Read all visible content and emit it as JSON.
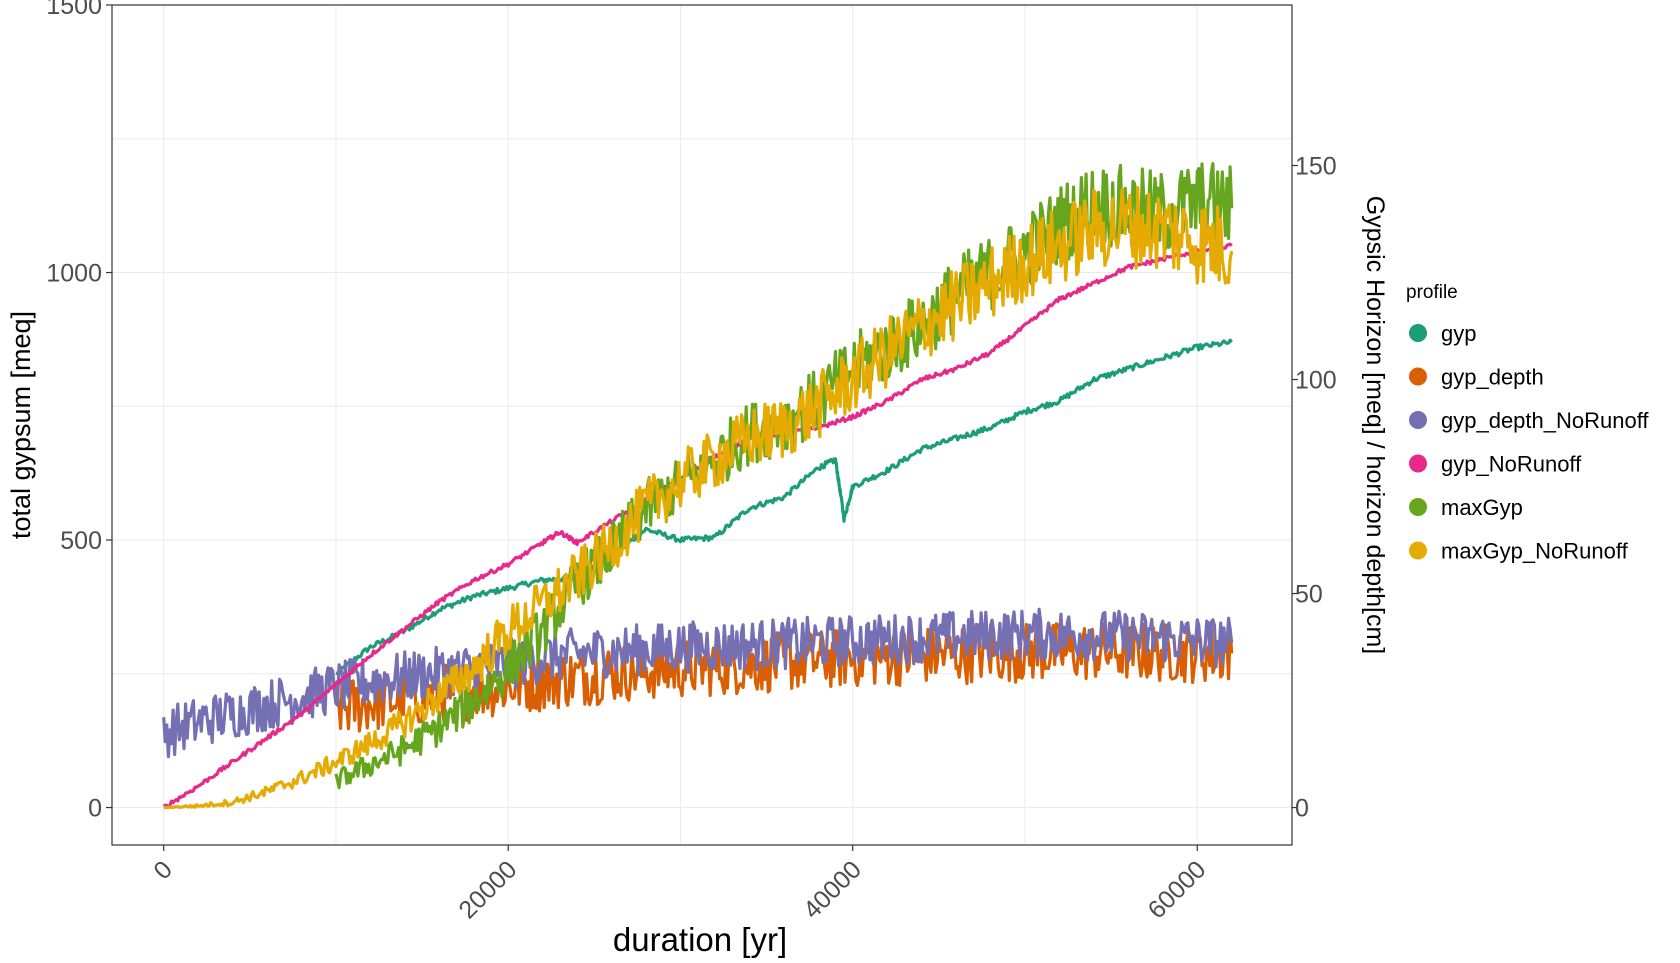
{
  "chart_data": {
    "type": "line",
    "title": "",
    "xlabel": "duration [yr]",
    "ylabel": "total gypsum [meq]",
    "y2label": "Gypsic Horizon [meq] / horizon depth[cm]",
    "xlim": [
      -3000,
      65500
    ],
    "ylim": [
      -70,
      1500
    ],
    "y2lim": [
      -8.75,
      187.5
    ],
    "y2_scale_factor": 8,
    "xticks": [
      0,
      20000,
      40000,
      60000
    ],
    "xtick_labels": [
      "0",
      "20000",
      "40000",
      "60000"
    ],
    "yticks": [
      0,
      500,
      1000,
      1500
    ],
    "ytick_labels": [
      "0",
      "500",
      "1000",
      "1500"
    ],
    "y2ticks": [
      0,
      50,
      100,
      150
    ],
    "y2tick_labels": [
      "0",
      "50",
      "100",
      "150"
    ],
    "grid": true,
    "legend_position": "right",
    "legend_title": "profile",
    "series": [
      {
        "name": "gyp",
        "axis": "left",
        "color": "#1b9e77",
        "x": [
          10000,
          12000,
          14000,
          16000,
          18000,
          20000,
          22000,
          24000,
          26000,
          28000,
          30000,
          32000,
          34000,
          36000,
          38000,
          39000,
          39500,
          40000,
          42000,
          44000,
          46000,
          48000,
          50000,
          52000,
          54000,
          56000,
          58000,
          60000,
          62000
        ],
        "values": [
          250,
          300,
          330,
          370,
          395,
          410,
          425,
          430,
          470,
          520,
          500,
          505,
          560,
          580,
          635,
          650,
          540,
          600,
          630,
          670,
          690,
          710,
          740,
          760,
          800,
          820,
          840,
          860,
          870
        ]
      },
      {
        "name": "gyp_depth",
        "axis": "right",
        "color": "#d95f02",
        "x": [
          10000,
          12000,
          14000,
          16000,
          18000,
          20000,
          22000,
          24000,
          26000,
          28000,
          30000,
          32000,
          34000,
          36000,
          38000,
          40000,
          42000,
          44000,
          46000,
          48000,
          50000,
          52000,
          54000,
          56000,
          58000,
          60000,
          62000
        ],
        "values": [
          23,
          24.5,
          25.5,
          26.5,
          27.5,
          28.5,
          29.5,
          30.5,
          31.5,
          32,
          32.5,
          33,
          33.5,
          34,
          34.5,
          35,
          35.3,
          35.6,
          35.9,
          36.1,
          36.3,
          36.4,
          36.5,
          36.4,
          36.3,
          36.1,
          36
        ]
      },
      {
        "name": "gyp_depth_NoRunoff",
        "axis": "right",
        "color": "#7570b3",
        "x": [
          0,
          2000,
          4000,
          6000,
          8000,
          10000,
          12000,
          14000,
          16000,
          18000,
          20000,
          22000,
          24000,
          26000,
          28000,
          30000,
          32000,
          34000,
          36000,
          38000,
          40000,
          42000,
          44000,
          46000,
          48000,
          50000,
          52000,
          54000,
          56000,
          58000,
          60000,
          62000
        ],
        "values": [
          17.5,
          20,
          22,
          24,
          26,
          28,
          29.5,
          30.5,
          31.5,
          32.5,
          33.5,
          35,
          36,
          36.5,
          37,
          37.5,
          37.8,
          38,
          38.3,
          38.6,
          39,
          39.3,
          39.6,
          40,
          40.3,
          40.5,
          40.5,
          40.3,
          40,
          39.6,
          39,
          38.5
        ]
      },
      {
        "name": "gyp_NoRunoff",
        "axis": "left",
        "color": "#e7298a",
        "x": [
          0,
          2000,
          4000,
          6000,
          8000,
          10000,
          12000,
          14000,
          16000,
          18000,
          20000,
          22000,
          23000,
          24000,
          26000,
          28000,
          30000,
          32000,
          34000,
          36000,
          38000,
          40000,
          42000,
          44000,
          46000,
          48000,
          50000,
          52000,
          54000,
          56000,
          58000,
          60000,
          62000
        ],
        "values": [
          0,
          40,
          85,
          130,
          175,
          230,
          285,
          335,
          385,
          425,
          455,
          495,
          515,
          495,
          535,
          575,
          615,
          655,
          690,
          700,
          710,
          730,
          760,
          800,
          820,
          850,
          900,
          950,
          980,
          1010,
          1025,
          1040,
          1050
        ]
      },
      {
        "name": "maxGyp",
        "axis": "left",
        "color": "#66a61e",
        "x": [
          10000,
          12000,
          14000,
          16000,
          18000,
          20000,
          22000,
          24000,
          26000,
          28000,
          30000,
          32000,
          34000,
          36000,
          38000,
          40000,
          42000,
          44000,
          46000,
          48000,
          50000,
          52000,
          54000,
          56000,
          58000,
          60000,
          62000
        ],
        "values": [
          50,
          80,
          110,
          150,
          200,
          260,
          330,
          420,
          480,
          560,
          600,
          650,
          700,
          720,
          760,
          820,
          860,
          900,
          960,
          1000,
          1040,
          1090,
          1130,
          1120,
          1110,
          1130,
          1120
        ]
      },
      {
        "name": "maxGyp_NoRunoff",
        "axis": "left",
        "color": "#e6ab02",
        "x": [
          0,
          2000,
          4000,
          6000,
          8000,
          10000,
          12000,
          14000,
          16000,
          18000,
          20000,
          22000,
          24000,
          26000,
          28000,
          30000,
          32000,
          34000,
          36000,
          38000,
          40000,
          42000,
          44000,
          46000,
          48000,
          50000,
          52000,
          54000,
          56000,
          58000,
          60000,
          62000
        ],
        "values": [
          0,
          3,
          10,
          30,
          55,
          85,
          120,
          160,
          210,
          260,
          330,
          380,
          430,
          490,
          560,
          610,
          650,
          690,
          710,
          750,
          800,
          850,
          900,
          940,
          980,
          1020,
          1050,
          1080,
          1090,
          1080,
          1060,
          1040
        ]
      }
    ]
  }
}
